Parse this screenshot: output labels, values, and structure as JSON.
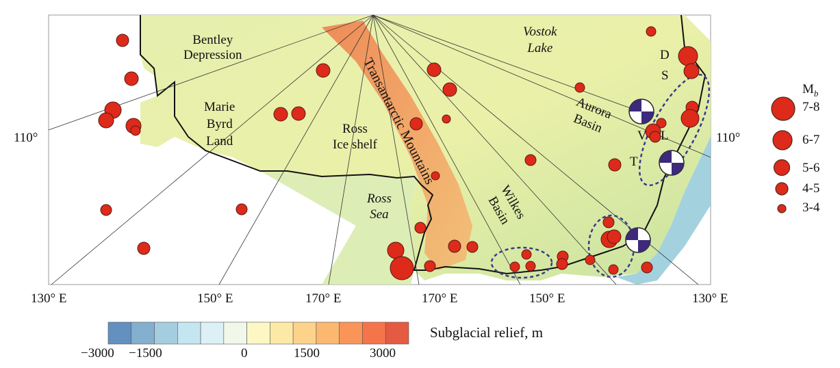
{
  "map": {
    "region_labels": {
      "bentley": [
        "Bentley",
        "Depression"
      ],
      "marie_byrd": [
        "Marie",
        "Byrd",
        "Land"
      ],
      "ross_ice": [
        "Ross",
        "Ice shelf"
      ],
      "transantarctic": "Transantarctic Mountains",
      "vostok": [
        "Vostok",
        "Lake"
      ],
      "aurora": [
        "Aurora",
        "Basin"
      ],
      "wilkes": [
        "Wilkes",
        "Basin"
      ],
      "ross_sea": [
        "Ross",
        "Sea"
      ],
      "stations": {
        "D": "D",
        "S": "S",
        "V": "V",
        "L": "L",
        "T": "T"
      }
    },
    "axis_labels": {
      "left": "110°",
      "right": "110°",
      "bottom": [
        "130° E",
        "150° E",
        "170° E",
        "170° E",
        "150° E",
        "130° E"
      ]
    }
  },
  "legend": {
    "title": "Mb",
    "title_main": "M",
    "title_sub": "b",
    "classes": [
      "7-8",
      "6-7",
      "5-6",
      "4-5",
      "3-4"
    ],
    "marker_color": "#dd2a1b"
  },
  "colorbar": {
    "label": "Subglacial relief, m",
    "ticks": [
      "−3000",
      "−1500",
      "0",
      "1500",
      "3000"
    ],
    "colors": [
      "#6390c0",
      "#84b0d0",
      "#a5cde0",
      "#c4e6f0",
      "#dcf0f5",
      "#f1f8ea",
      "#fdf7c4",
      "#fde9a6",
      "#fdd38c",
      "#fcb871",
      "#fa955a",
      "#f6744a",
      "#e45b42"
    ]
  }
}
